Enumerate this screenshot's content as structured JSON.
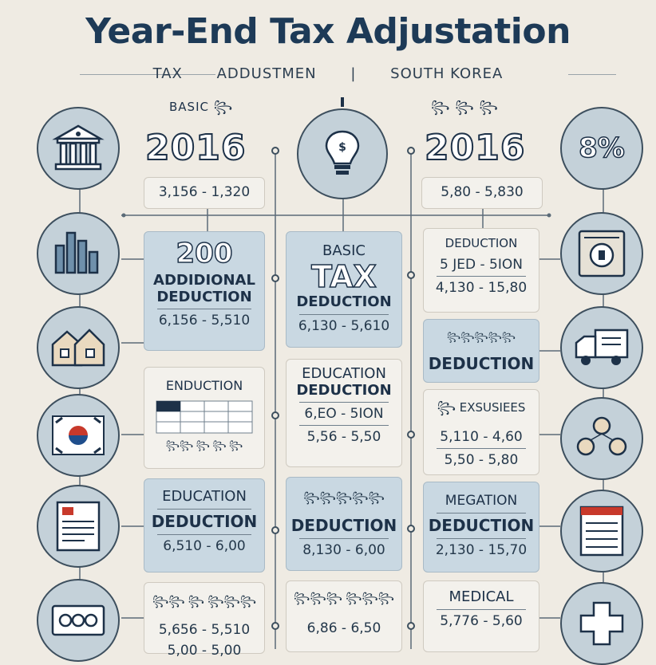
{
  "header": {
    "title": "Year-End Tax Adjustation",
    "subtitle": [
      "TAX",
      "ADDUSTMEN",
      "|",
      "SOUTH KOREA"
    ]
  },
  "top_left": {
    "label": "BASIC ꧂",
    "year": "2016",
    "range": "3,156 - 1,320"
  },
  "top_center": {
    "icon": "lightbulb-icon"
  },
  "top_right": {
    "label": "꧂ ꧂ ꧂",
    "year": "2016",
    "range": "5,80 - 5,830"
  },
  "left_col": [
    {
      "title": "200",
      "title2": "ADDIDIONAL DEDUCTION",
      "range": "6,156 - 5,510"
    },
    {
      "title": "ENDUCTION",
      "table_caption": "꧂꧂ ꧂ ꧂ ꧂"
    },
    {
      "title": "EDUCATION",
      "title2": "DEDUCTION",
      "range": "6,510 - 6,00"
    },
    {
      "title": "꧂꧂ ꧂ ꧂꧂꧂",
      "range": "5,656 - 5,510",
      "range2": "5,00 - 5,00"
    }
  ],
  "center_col": [
    {
      "title": "BASIC",
      "title2": "TAX",
      "title3": "DEDUCTION",
      "range": "6,130 - 5,610"
    },
    {
      "title": "EDUCATION",
      "title2": "DEDUCTION",
      "range": "6,EO - 5ION",
      "range2": "5,56 - 5,50"
    },
    {
      "title": "꧂꧂꧂꧂꧂",
      "title2": "DEDUCTION",
      "range": "8,130 - 6,00"
    },
    {
      "title": "꧂꧂꧂ ꧂꧂꧂",
      "range": "6,86 - 6,50"
    }
  ],
  "right_col": [
    {
      "title": "DEDUCTION",
      "range": "5 JED - 5ION",
      "range2": "4,130 - 15,80"
    },
    {
      "title": "꧂꧂꧂꧂꧂",
      "title2": "DEDUCTION"
    },
    {
      "title": "꧂ EXSUSIEES",
      "range": "5,110 - 4,60",
      "range2": "5,50 - 5,80"
    },
    {
      "title": "MEGATION",
      "title2": "DEDUCTION",
      "range": "2,130 - 15,70"
    },
    {
      "title": "MEDICAL",
      "range": "5,776 - 5,60"
    }
  ],
  "left_icons": [
    "bank-icon",
    "bar-chart-icon",
    "houses-icon",
    "korea-flag-icon",
    "document-icon",
    "money-bills-icon"
  ],
  "right_icons": [
    "percent-icon",
    "safe-icon",
    "delivery-truck-icon",
    "coins-icon",
    "checklist-icon",
    "medical-cross-icon"
  ],
  "right_top_circle": {
    "text": "8%"
  },
  "colors": {
    "background": "#efebe3",
    "navy": "#1d3148",
    "card_blue": "#c9d8e2",
    "circle": "#c4d1d9",
    "flag_red": "#c8392b",
    "flag_blue": "#1f4e8c"
  }
}
